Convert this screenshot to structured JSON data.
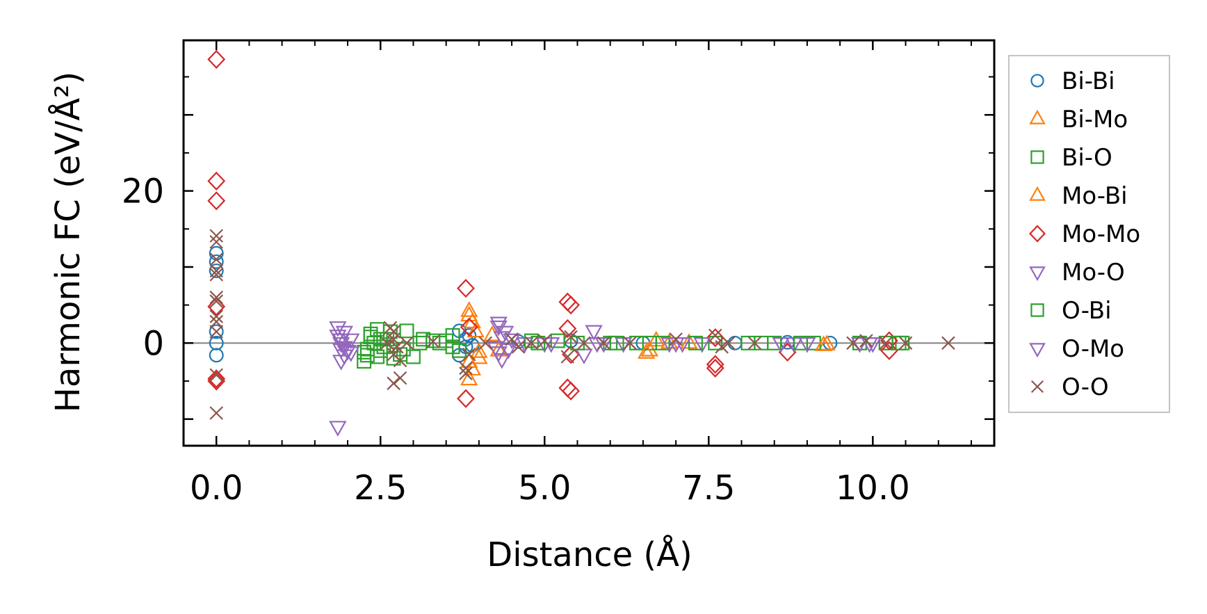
{
  "chart_data": {
    "type": "scatter",
    "xlabel": "Distance (Å)",
    "ylabel": "Harmonic FC (eV/Å²)",
    "xlim": [
      -0.5,
      11.85
    ],
    "ylim": [
      -13.5,
      39.8
    ],
    "x_ticks": [
      0.0,
      2.5,
      5.0,
      7.5,
      10.0
    ],
    "x_tick_labels": [
      "0.0",
      "2.5",
      "5.0",
      "7.5",
      "10.0"
    ],
    "y_ticks": [
      0,
      20
    ],
    "y_tick_labels": [
      "0",
      "20"
    ],
    "grid": false,
    "zero_line": true,
    "legend": "outside-right",
    "series": [
      {
        "name": "Bi-Bi",
        "marker": "circle",
        "color": "#1f77b4",
        "points": [
          [
            0,
            11.8
          ],
          [
            0,
            10.7
          ],
          [
            0,
            9.5
          ],
          [
            0,
            1.5
          ],
          [
            0,
            0
          ],
          [
            0,
            -1.6
          ],
          [
            3.7,
            1.6
          ],
          [
            3.7,
            -1.6
          ],
          [
            3.8,
            0.5
          ],
          [
            3.8,
            -0.5
          ],
          [
            3.85,
            1.0
          ],
          [
            3.9,
            -0.3
          ],
          [
            4.6,
            0.2
          ],
          [
            5.4,
            0.3
          ],
          [
            6.5,
            0
          ],
          [
            7.9,
            0
          ],
          [
            8.7,
            0.1
          ],
          [
            9.35,
            0
          ]
        ]
      },
      {
        "name": "Bi-Mo",
        "marker": "triangle-up",
        "color": "#ff7f0e",
        "points": [
          [
            3.85,
            4.2
          ],
          [
            3.9,
            2.7
          ],
          [
            3.85,
            -2.5
          ],
          [
            3.85,
            -4.8
          ],
          [
            4.0,
            -2.0
          ],
          [
            4.2,
            1.0
          ],
          [
            4.3,
            -1.0
          ],
          [
            6.6,
            -1.0
          ],
          [
            6.7,
            0.3
          ],
          [
            7.2,
            0
          ],
          [
            9.3,
            -0.2
          ]
        ]
      },
      {
        "name": "Bi-O",
        "marker": "square",
        "color": "#2ca02c",
        "points": [
          [
            2.25,
            -1.2
          ],
          [
            2.25,
            -2.4
          ],
          [
            2.3,
            -1.6
          ],
          [
            2.35,
            0.8
          ],
          [
            2.4,
            0
          ],
          [
            2.45,
            1.8
          ],
          [
            2.45,
            -1.8
          ],
          [
            2.5,
            0.5
          ],
          [
            2.55,
            -0.5
          ],
          [
            2.65,
            1.5
          ],
          [
            2.7,
            -2.0
          ],
          [
            2.8,
            -1.5
          ],
          [
            2.9,
            1.6
          ],
          [
            3.0,
            -1.8
          ],
          [
            3.15,
            0.5
          ],
          [
            3.3,
            0.3
          ],
          [
            3.5,
            0.3
          ],
          [
            3.6,
            -0.5
          ],
          [
            3.6,
            1.0
          ],
          [
            4.8,
            0.3
          ],
          [
            5.2,
            0.3
          ],
          [
            6.0,
            0
          ],
          [
            6.4,
            0
          ],
          [
            6.6,
            0
          ],
          [
            7.6,
            0
          ],
          [
            8.1,
            0
          ],
          [
            8.5,
            0
          ],
          [
            9.1,
            0
          ],
          [
            9.8,
            0
          ],
          [
            10.2,
            0
          ],
          [
            10.45,
            0
          ]
        ]
      },
      {
        "name": "Mo-Bi",
        "marker": "triangle-up",
        "color": "#ff7f0e",
        "points": [
          [
            3.85,
            3.6
          ],
          [
            3.9,
            -3.5
          ],
          [
            3.95,
            1.5
          ],
          [
            4.0,
            -1.2
          ],
          [
            6.55,
            -1.3
          ],
          [
            6.9,
            0
          ],
          [
            9.25,
            -0.3
          ]
        ]
      },
      {
        "name": "Mo-Mo",
        "marker": "diamond",
        "color": "#d62728",
        "points": [
          [
            0,
            37.3
          ],
          [
            0,
            21.3
          ],
          [
            0,
            18.7
          ],
          [
            0,
            4.8
          ],
          [
            0,
            -4.7
          ],
          [
            0,
            -5.0
          ],
          [
            3.8,
            7.2
          ],
          [
            3.8,
            -7.3
          ],
          [
            3.85,
            2.1
          ],
          [
            5.35,
            5.4
          ],
          [
            5.4,
            5.0
          ],
          [
            5.35,
            -5.9
          ],
          [
            5.4,
            -6.3
          ],
          [
            5.35,
            1.9
          ],
          [
            5.4,
            -1.5
          ],
          [
            7.6,
            0.7
          ],
          [
            7.6,
            -2.8
          ],
          [
            7.6,
            -3.3
          ],
          [
            8.7,
            -1.2
          ],
          [
            10.25,
            0.3
          ],
          [
            10.25,
            -1.0
          ]
        ]
      },
      {
        "name": "Mo-O",
        "marker": "triangle-down",
        "color": "#9467bd",
        "points": [
          [
            1.85,
            2.1
          ],
          [
            1.85,
            1.0
          ],
          [
            1.9,
            0
          ],
          [
            1.9,
            -0.8
          ],
          [
            1.95,
            -1.6
          ],
          [
            1.9,
            -2.3
          ],
          [
            1.95,
            1.5
          ],
          [
            2.0,
            -1.0
          ],
          [
            2.05,
            0.5
          ],
          [
            1.85,
            -11.0
          ],
          [
            4.3,
            2.7
          ],
          [
            4.3,
            2.2
          ],
          [
            4.35,
            -2.1
          ],
          [
            4.3,
            -1.2
          ],
          [
            4.4,
            1.5
          ],
          [
            4.5,
            0.5
          ],
          [
            4.7,
            0
          ],
          [
            5.0,
            0
          ],
          [
            5.6,
            -1.5
          ],
          [
            5.75,
            1.6
          ],
          [
            5.9,
            0
          ],
          [
            6.2,
            0
          ],
          [
            7.0,
            0
          ],
          [
            7.4,
            0
          ],
          [
            8.8,
            0
          ],
          [
            9.8,
            0
          ],
          [
            10.0,
            0
          ]
        ]
      },
      {
        "name": "O-Bi",
        "marker": "square",
        "color": "#2ca02c",
        "points": [
          [
            2.3,
            -0.8
          ],
          [
            2.35,
            1.2
          ],
          [
            2.5,
            -1.0
          ],
          [
            2.6,
            0.5
          ],
          [
            2.85,
            -0.8
          ],
          [
            3.1,
            0
          ],
          [
            3.4,
            0
          ],
          [
            3.7,
            -1.0
          ],
          [
            4.9,
            0
          ],
          [
            5.5,
            0
          ],
          [
            6.1,
            0
          ],
          [
            6.8,
            0
          ],
          [
            7.3,
            0
          ],
          [
            8.3,
            0
          ],
          [
            8.9,
            0
          ],
          [
            10.4,
            0
          ]
        ]
      },
      {
        "name": "O-Mo",
        "marker": "triangle-down",
        "color": "#9467bd",
        "points": [
          [
            1.9,
            0.5
          ],
          [
            1.95,
            -0.5
          ],
          [
            2.05,
            -1.2
          ],
          [
            4.25,
            -0.5
          ],
          [
            4.35,
            0.8
          ],
          [
            4.45,
            -0.8
          ],
          [
            5.1,
            0
          ],
          [
            5.8,
            0
          ],
          [
            6.9,
            0
          ],
          [
            7.1,
            0
          ],
          [
            8.6,
            0
          ],
          [
            9.0,
            0
          ],
          [
            9.95,
            0
          ]
        ]
      },
      {
        "name": "O-O",
        "marker": "cross",
        "color": "#8c564b",
        "points": [
          [
            0,
            14.1
          ],
          [
            0,
            13.3
          ],
          [
            0,
            11.0
          ],
          [
            0,
            9.5
          ],
          [
            0,
            9.0
          ],
          [
            0,
            6.0
          ],
          [
            0,
            5.5
          ],
          [
            0,
            3.5
          ],
          [
            0,
            2.8
          ],
          [
            0,
            1.5
          ],
          [
            0,
            -4.2
          ],
          [
            0,
            -9.2
          ],
          [
            2.65,
            2.0
          ],
          [
            2.7,
            1.5
          ],
          [
            2.7,
            0.5
          ],
          [
            2.75,
            -0.5
          ],
          [
            2.7,
            -1.5
          ],
          [
            2.8,
            -2.3
          ],
          [
            2.7,
            -5.3
          ],
          [
            2.8,
            -4.6
          ],
          [
            2.6,
            0
          ],
          [
            2.9,
            0
          ],
          [
            3.3,
            0.2
          ],
          [
            3.8,
            -3.3
          ],
          [
            3.8,
            -4.0
          ],
          [
            3.85,
            -1.5
          ],
          [
            4.1,
            0
          ],
          [
            4.5,
            0.5
          ],
          [
            4.6,
            -0.5
          ],
          [
            4.8,
            0
          ],
          [
            5.0,
            0.3
          ],
          [
            5.35,
            -1.8
          ],
          [
            5.4,
            0.8
          ],
          [
            5.6,
            0
          ],
          [
            5.9,
            0
          ],
          [
            6.3,
            0
          ],
          [
            7.0,
            0.5
          ],
          [
            7.6,
            1.0
          ],
          [
            7.7,
            -0.5
          ],
          [
            7.8,
            0
          ],
          [
            8.2,
            0
          ],
          [
            9.7,
            0
          ],
          [
            9.9,
            0.3
          ],
          [
            10.2,
            0
          ],
          [
            10.5,
            0
          ],
          [
            11.15,
            0
          ]
        ]
      }
    ]
  }
}
